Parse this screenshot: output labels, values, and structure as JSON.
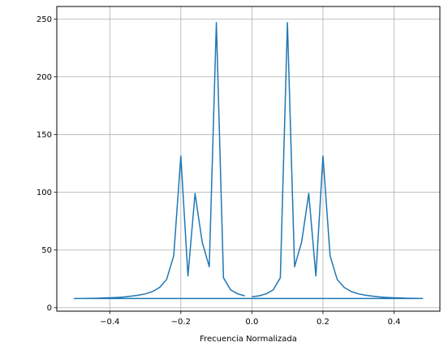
{
  "chart_data": {
    "type": "line",
    "title": "",
    "xlabel": "Frecuencia Normalizada",
    "ylabel": "",
    "xlim": [
      -0.549,
      0.529
    ],
    "ylim": [
      -3,
      261
    ],
    "grid": true,
    "xticks": [
      -0.4,
      -0.2,
      0.0,
      0.2,
      0.4
    ],
    "xtick_labels": [
      "−0.4",
      "−0.2",
      "0.0",
      "0.2",
      "0.4"
    ],
    "yticks": [
      0,
      50,
      100,
      150,
      200,
      250
    ],
    "ytick_labels": [
      "0",
      "50",
      "100",
      "150",
      "200",
      "250"
    ],
    "colors": {
      "line": "#1f77b4",
      "grid": "#b0b0b0",
      "axis": "#000000"
    },
    "series": [
      {
        "x": [
          0.0,
          0.02,
          0.04,
          0.06,
          0.08,
          0.1,
          0.12,
          0.14,
          0.16,
          0.18,
          0.2,
          0.22,
          0.24,
          0.26,
          0.28,
          0.3,
          0.32,
          0.34,
          0.36,
          0.38,
          0.4,
          0.42,
          0.44,
          0.46,
          0.48,
          -0.5,
          -0.48,
          -0.46,
          -0.44,
          -0.42,
          -0.4,
          -0.38,
          -0.36,
          -0.34,
          -0.32,
          -0.3,
          -0.28,
          -0.26,
          -0.24,
          -0.22,
          -0.2,
          -0.18,
          -0.16,
          -0.14,
          -0.12,
          -0.1,
          -0.08,
          -0.06,
          -0.04,
          -0.02
        ],
        "y": [
          9.5,
          10.3,
          12.0,
          15.5,
          26.0,
          247.0,
          35.5,
          57.0,
          99.0,
          27.5,
          131.5,
          45.0,
          24.5,
          17.5,
          14.0,
          12.0,
          10.8,
          10.0,
          9.3,
          8.9,
          8.6,
          8.4,
          8.2,
          8.1,
          8.0,
          8.0,
          8.0,
          8.1,
          8.2,
          8.4,
          8.6,
          8.9,
          9.3,
          10.0,
          10.8,
          12.0,
          14.0,
          17.5,
          24.5,
          45.0,
          131.5,
          27.5,
          99.0,
          57.0,
          35.5,
          247.0,
          26.0,
          15.5,
          12.0,
          10.3
        ]
      }
    ]
  }
}
